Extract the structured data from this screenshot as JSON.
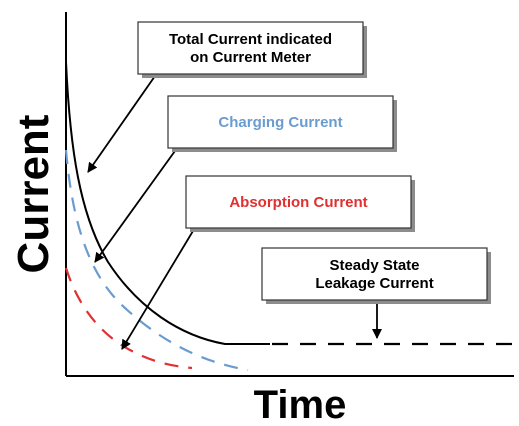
{
  "chart_data": {
    "type": "line",
    "xlabel": "Time",
    "ylabel": "Current",
    "grid": false,
    "series": [
      {
        "key": "total",
        "style": "solid",
        "color": "#000000"
      },
      {
        "key": "charging",
        "style": "dashed",
        "color": "#6a9ccf"
      },
      {
        "key": "absorption",
        "style": "dashed",
        "color": "#e03030"
      },
      {
        "key": "leakage",
        "style": "dashed",
        "color": "#000000"
      }
    ],
    "annotations": [
      {
        "key": "total",
        "lines": [
          "Total Current indicated",
          "on Current Meter"
        ],
        "color": "#000000"
      },
      {
        "key": "charging",
        "lines": [
          "Charging Current"
        ],
        "color": "#6a9ccf"
      },
      {
        "key": "absorption",
        "lines": [
          "Absorption Current"
        ],
        "color": "#e03030"
      },
      {
        "key": "leakage",
        "lines": [
          "Steady State",
          "Leakage Current"
        ],
        "color": "#000000"
      }
    ]
  }
}
